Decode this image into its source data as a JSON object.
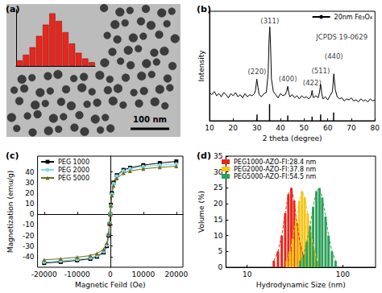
{
  "chart_data": [
    {
      "type": "bar",
      "title": "(a)",
      "categories": [
        null,
        null,
        null,
        null,
        null,
        null,
        null,
        null,
        null,
        null,
        null,
        null
      ],
      "values": [
        3,
        6,
        10,
        16,
        22,
        28,
        24,
        18,
        12,
        7,
        4,
        2
      ],
      "color": "#e8261c",
      "ylim": [
        0,
        30
      ],
      "tick_labels": false,
      "grid": false,
      "annotations": [
        {
          "text": "100 nm"
        }
      ]
    },
    {
      "type": "line",
      "title": "(b)",
      "x_label": "2 theta (degree)",
      "y_label": "Intensity",
      "xlim": [
        10,
        80
      ],
      "xticks": [
        10,
        20,
        30,
        40,
        50,
        60,
        70,
        80
      ],
      "ylim": [
        0,
        105
      ],
      "tick_labels": "x",
      "grid": false,
      "legend": "upper right",
      "x": [
        10,
        11,
        12,
        13,
        14,
        15,
        16,
        17,
        18,
        19,
        20,
        21,
        22,
        23,
        24,
        25,
        26,
        27,
        28,
        29,
        29.5,
        30,
        30.5,
        31,
        32,
        33,
        34,
        34.8,
        35.2,
        35.5,
        35.8,
        36.2,
        37,
        38,
        39,
        40,
        41,
        42,
        42.6,
        43.1,
        43.6,
        44,
        45,
        46,
        47,
        48,
        49,
        50,
        51,
        52,
        53,
        53.4,
        53.8,
        54,
        55,
        56,
        56.5,
        57,
        57.5,
        58,
        59,
        60,
        61,
        62,
        62.6,
        63.2,
        64,
        65,
        66,
        67,
        68,
        69,
        70,
        71,
        72,
        73,
        74,
        75,
        76,
        77,
        78,
        79,
        80
      ],
      "series": [
        {
          "name": "20nm Fe₃O₄",
          "color": "#000000",
          "values": [
            27,
            25,
            28,
            24,
            26,
            23,
            27,
            25,
            22,
            26,
            24,
            27,
            23,
            25,
            22,
            26,
            23,
            25,
            24,
            26,
            30,
            40,
            32,
            25,
            23,
            26,
            27,
            45,
            78,
            90,
            74,
            40,
            28,
            25,
            22,
            26,
            24,
            25,
            28,
            33,
            26,
            23,
            25,
            22,
            24,
            21,
            24,
            22,
            23,
            21,
            24,
            29,
            23,
            22,
            24,
            22,
            27,
            35,
            26,
            21,
            23,
            20,
            24,
            28,
            45,
            30,
            23,
            21,
            22,
            19,
            21,
            20,
            22,
            19,
            20,
            18,
            21,
            19,
            20,
            18,
            21,
            19,
            20
          ]
        },
        {
          "type": "bar",
          "color": "#000000",
          "x": [
            30.1,
            35.4,
            43.1,
            53.4,
            57.0,
            62.5
          ],
          "values": [
            6,
            16,
            5,
            4,
            6,
            8
          ]
        }
      ],
      "annotations": [
        {
          "text": "(220)",
          "x": 30.1,
          "y": 47
        },
        {
          "text": "(311)",
          "x": 35.5,
          "y": 96
        },
        {
          "text": "(400)",
          "x": 43.1,
          "y": 40
        },
        {
          "text": "(422)",
          "x": 53.4,
          "y": 36
        },
        {
          "text": "(511)",
          "x": 57.0,
          "y": 48
        },
        {
          "text": "(440)",
          "x": 62.6,
          "y": 62
        },
        {
          "text": "JCPDS 19-0629",
          "x": 66,
          "y": 80
        }
      ]
    },
    {
      "type": "line",
      "title": "(c)",
      "x_label": "Magnetic Feild (Oe)",
      "y_label": "Magnetization (emu/g)",
      "xlim": [
        -22000,
        22000
      ],
      "xticks": [
        -20000,
        -10000,
        0,
        10000,
        20000
      ],
      "ylim": [
        -50,
        55
      ],
      "yticks": [
        -40,
        -30,
        -20,
        -10,
        0,
        10,
        20,
        30,
        40
      ],
      "grid": false,
      "legend": "upper left",
      "x": [
        -20000,
        -15000,
        -10000,
        -6000,
        -4000,
        -2000,
        -1000,
        -500,
        -200,
        0,
        200,
        500,
        1000,
        2000,
        4000,
        6000,
        10000,
        15000,
        20000
      ],
      "series": [
        {
          "name": "PEG 1000",
          "color": "#000000",
          "marker": "square",
          "line_style": "solid",
          "values": [
            -46,
            -45,
            -43.5,
            -42,
            -40,
            -36,
            -30,
            -20,
            -9,
            0,
            9,
            20,
            30,
            37,
            42,
            44,
            46.5,
            48.5,
            50
          ]
        },
        {
          "name": "PEG 2000",
          "color": "#7fdde6",
          "marker": "circle",
          "line_style": "solid",
          "values": [
            -45,
            -44,
            -42.5,
            -41,
            -39,
            -35,
            -29,
            -19,
            -8,
            0,
            8,
            19,
            29,
            36,
            41,
            43,
            45,
            46.5,
            47.5
          ]
        },
        {
          "name": "PEG 5000",
          "color": "#6b6b1e",
          "marker": "triangle",
          "line_style": "solid",
          "values": [
            -43,
            -42,
            -40.5,
            -39,
            -37,
            -33,
            -27,
            -18,
            -8,
            0,
            8,
            18,
            27,
            34,
            39,
            41,
            43,
            44.5,
            45.5
          ]
        }
      ]
    },
    {
      "type": "bar",
      "title": "(d)",
      "x_label": "Hydrodynamic Size (nm)",
      "y_label": "Volume (%)",
      "log": "x",
      "xlim": [
        6,
        220
      ],
      "xticks": [
        10,
        100
      ],
      "ylim": [
        0,
        35
      ],
      "yticks": [
        0,
        5,
        10,
        15,
        20,
        25,
        30,
        35
      ],
      "grid": false,
      "legend": "upper left",
      "line_style": "dashed",
      "series": [
        {
          "name": "PEG1000-AZO-FI:28.4 nm",
          "color": "#e8261c",
          "x": [
            19,
            21,
            23,
            25,
            27,
            29,
            31,
            33,
            36,
            39
          ],
          "values": [
            2,
            5,
            10,
            17,
            23,
            25,
            21,
            14,
            7,
            3
          ]
        },
        {
          "name": "PEG2000-AZO-FI:37.8 nm",
          "color": "#f5c518",
          "x": [
            26,
            28,
            30,
            32.5,
            35,
            37.5,
            40,
            43,
            46,
            50,
            54
          ],
          "values": [
            2,
            5,
            9,
            15,
            21,
            24,
            22,
            17,
            11,
            6,
            2
          ]
        },
        {
          "name": "PEG5000-AZO-FI:54.5 nm",
          "color": "#2ca05a",
          "x": [
            36,
            39,
            42,
            45.5,
            49,
            53,
            57,
            61,
            66,
            71,
            77,
            84
          ],
          "values": [
            2,
            4,
            8,
            13,
            19,
            24,
            25,
            22,
            16,
            10,
            5,
            2
          ]
        }
      ]
    }
  ]
}
